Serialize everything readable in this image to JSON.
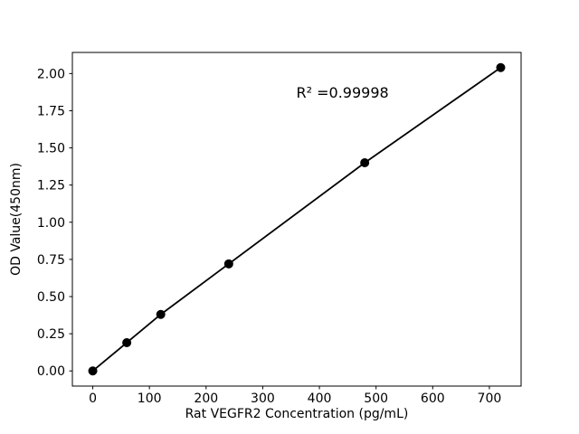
{
  "figure": {
    "background": "#ffffff",
    "foreground": "#000000"
  },
  "chart_data": {
    "type": "line",
    "x": [
      0,
      60,
      120,
      240,
      480,
      720
    ],
    "y": [
      0.0,
      0.19,
      0.38,
      0.72,
      1.4,
      2.04
    ],
    "xlabel": "Rat VEGFR2 Concentration (pg/mL)",
    "ylabel": "OD Value(450nm)",
    "x_ticks": [
      0,
      100,
      200,
      300,
      400,
      500,
      600,
      700
    ],
    "x_tick_labels": [
      "0",
      "100",
      "200",
      "300",
      "400",
      "500",
      "600",
      "700"
    ],
    "y_ticks": [
      0.0,
      0.25,
      0.5,
      0.75,
      1.0,
      1.25,
      1.5,
      1.75,
      2.0
    ],
    "y_tick_labels": [
      "0.00",
      "0.25",
      "0.50",
      "0.75",
      "1.00",
      "1.25",
      "1.50",
      "1.75",
      "2.00"
    ],
    "xlim": [
      -36,
      756
    ],
    "ylim": [
      -0.102,
      2.142
    ],
    "grid": false,
    "legend": false,
    "marker": "circle",
    "line_color": "#000000",
    "marker_color": "#000000",
    "annotation": {
      "text": "R² =0.99998",
      "x_frac": 0.602,
      "y_frac_from_bottom": 0.865
    }
  }
}
